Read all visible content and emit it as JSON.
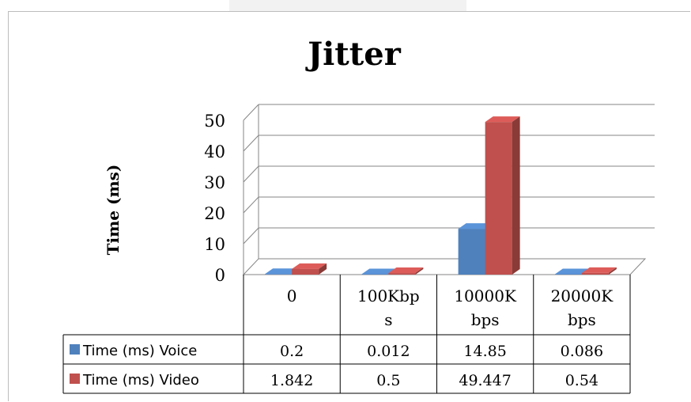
{
  "chart_data": {
    "type": "bar",
    "title": "Jitter",
    "xlabel": "",
    "ylabel": "Time (ms)",
    "categories": [
      "0",
      "100Kbps",
      "10000Kbps",
      "20000Kbps"
    ],
    "category_display": [
      [
        "0"
      ],
      [
        "100Kbp",
        "s"
      ],
      [
        "10000K",
        "bps"
      ],
      [
        "20000K",
        "bps"
      ]
    ],
    "yticks": [
      "0",
      "10",
      "20",
      "30",
      "40",
      "50"
    ],
    "ylim": [
      0,
      50
    ],
    "grid": true,
    "legend": "data-table",
    "series": [
      {
        "name": "Time (ms) Voice",
        "color": "#4f81bd",
        "values": [
          0.2,
          0.012,
          14.85,
          0.086
        ],
        "labels": [
          "0.2",
          "0.012",
          "14.85",
          "0.086"
        ]
      },
      {
        "name": "Time (ms) Video",
        "color": "#c0504d",
        "values": [
          1.842,
          0.5,
          49.447,
          0.54
        ],
        "labels": [
          "1.842",
          "0.5",
          "49.447",
          "0.54"
        ]
      }
    ]
  }
}
